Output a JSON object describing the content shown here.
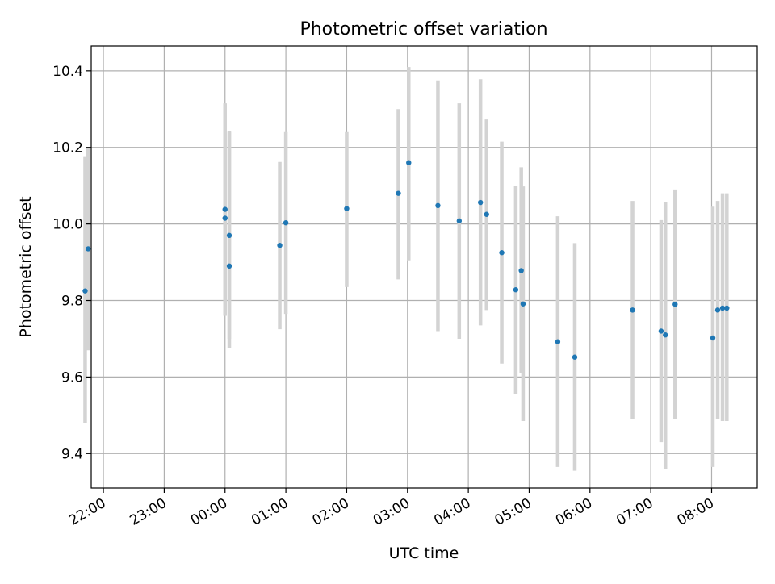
{
  "chart_data": {
    "type": "scatter",
    "title": "Photometric offset variation",
    "xlabel": "UTC time",
    "ylabel": "Photometric offset",
    "x_unit": "hours",
    "x_ticks": [
      {
        "t": -2,
        "label": "22:00"
      },
      {
        "t": -1,
        "label": "23:00"
      },
      {
        "t": 0,
        "label": "00:00"
      },
      {
        "t": 1,
        "label": "01:00"
      },
      {
        "t": 2,
        "label": "02:00"
      },
      {
        "t": 3,
        "label": "03:00"
      },
      {
        "t": 4,
        "label": "04:00"
      },
      {
        "t": 5,
        "label": "05:00"
      },
      {
        "t": 6,
        "label": "06:00"
      },
      {
        "t": 7,
        "label": "07:00"
      },
      {
        "t": 8,
        "label": "08:00"
      }
    ],
    "y_ticks": [
      9.4,
      9.6,
      9.8,
      10.0,
      10.2,
      10.4
    ],
    "y_tick_labels": [
      "9.4",
      "9.6",
      "9.8",
      "10.0",
      "10.2",
      "10.4"
    ],
    "xlim": [
      -2.2,
      8.75
    ],
    "ylim": [
      9.31,
      10.465
    ],
    "grid": true,
    "colors": {
      "point": "#1f77b4",
      "errorbar": "#d3d3d3",
      "grid": "#b0b0b0"
    },
    "points": [
      {
        "t": -2.3,
        "y": 9.825,
        "lo": 9.48,
        "hi": 10.175
      },
      {
        "t": -2.25,
        "y": 9.935,
        "lo": 9.67,
        "hi": 10.2
      },
      {
        "t": 0.0,
        "y": 10.038,
        "lo": 9.76,
        "hi": 10.315
      },
      {
        "t": 0.0,
        "y": 10.015,
        "lo": 9.76,
        "hi": 10.29
      },
      {
        "t": 0.07,
        "y": 9.97,
        "lo": 9.7,
        "hi": 10.24
      },
      {
        "t": 0.07,
        "y": 9.89,
        "lo": 9.675,
        "hi": 10.242
      },
      {
        "t": 0.9,
        "y": 9.944,
        "lo": 9.725,
        "hi": 10.162
      },
      {
        "t": 1.0,
        "y": 10.003,
        "lo": 9.765,
        "hi": 10.24
      },
      {
        "t": 2.0,
        "y": 10.04,
        "lo": 9.835,
        "hi": 10.24
      },
      {
        "t": 2.85,
        "y": 10.08,
        "lo": 9.855,
        "hi": 10.3
      },
      {
        "t": 3.02,
        "y": 10.16,
        "lo": 9.905,
        "hi": 10.41
      },
      {
        "t": 3.5,
        "y": 10.048,
        "lo": 9.72,
        "hi": 10.375
      },
      {
        "t": 3.85,
        "y": 10.008,
        "lo": 9.7,
        "hi": 10.315
      },
      {
        "t": 4.2,
        "y": 10.056,
        "lo": 9.735,
        "hi": 10.378
      },
      {
        "t": 4.3,
        "y": 10.025,
        "lo": 9.775,
        "hi": 10.273
      },
      {
        "t": 4.55,
        "y": 9.925,
        "lo": 9.635,
        "hi": 10.215
      },
      {
        "t": 4.78,
        "y": 9.828,
        "lo": 9.555,
        "hi": 10.1
      },
      {
        "t": 4.87,
        "y": 9.878,
        "lo": 9.61,
        "hi": 10.148
      },
      {
        "t": 4.9,
        "y": 9.791,
        "lo": 9.485,
        "hi": 10.098
      },
      {
        "t": 5.47,
        "y": 9.692,
        "lo": 9.365,
        "hi": 10.02
      },
      {
        "t": 5.75,
        "y": 9.652,
        "lo": 9.355,
        "hi": 9.95
      },
      {
        "t": 6.7,
        "y": 9.775,
        "lo": 9.49,
        "hi": 10.06
      },
      {
        "t": 7.17,
        "y": 9.72,
        "lo": 9.43,
        "hi": 10.01
      },
      {
        "t": 7.24,
        "y": 9.71,
        "lo": 9.36,
        "hi": 10.058
      },
      {
        "t": 7.4,
        "y": 9.79,
        "lo": 9.49,
        "hi": 10.09
      },
      {
        "t": 8.02,
        "y": 9.702,
        "lo": 9.365,
        "hi": 10.045
      },
      {
        "t": 8.1,
        "y": 9.775,
        "lo": 9.49,
        "hi": 10.06
      },
      {
        "t": 8.18,
        "y": 9.78,
        "lo": 9.485,
        "hi": 10.08
      },
      {
        "t": 8.25,
        "y": 9.78,
        "lo": 9.485,
        "hi": 10.08
      }
    ]
  }
}
